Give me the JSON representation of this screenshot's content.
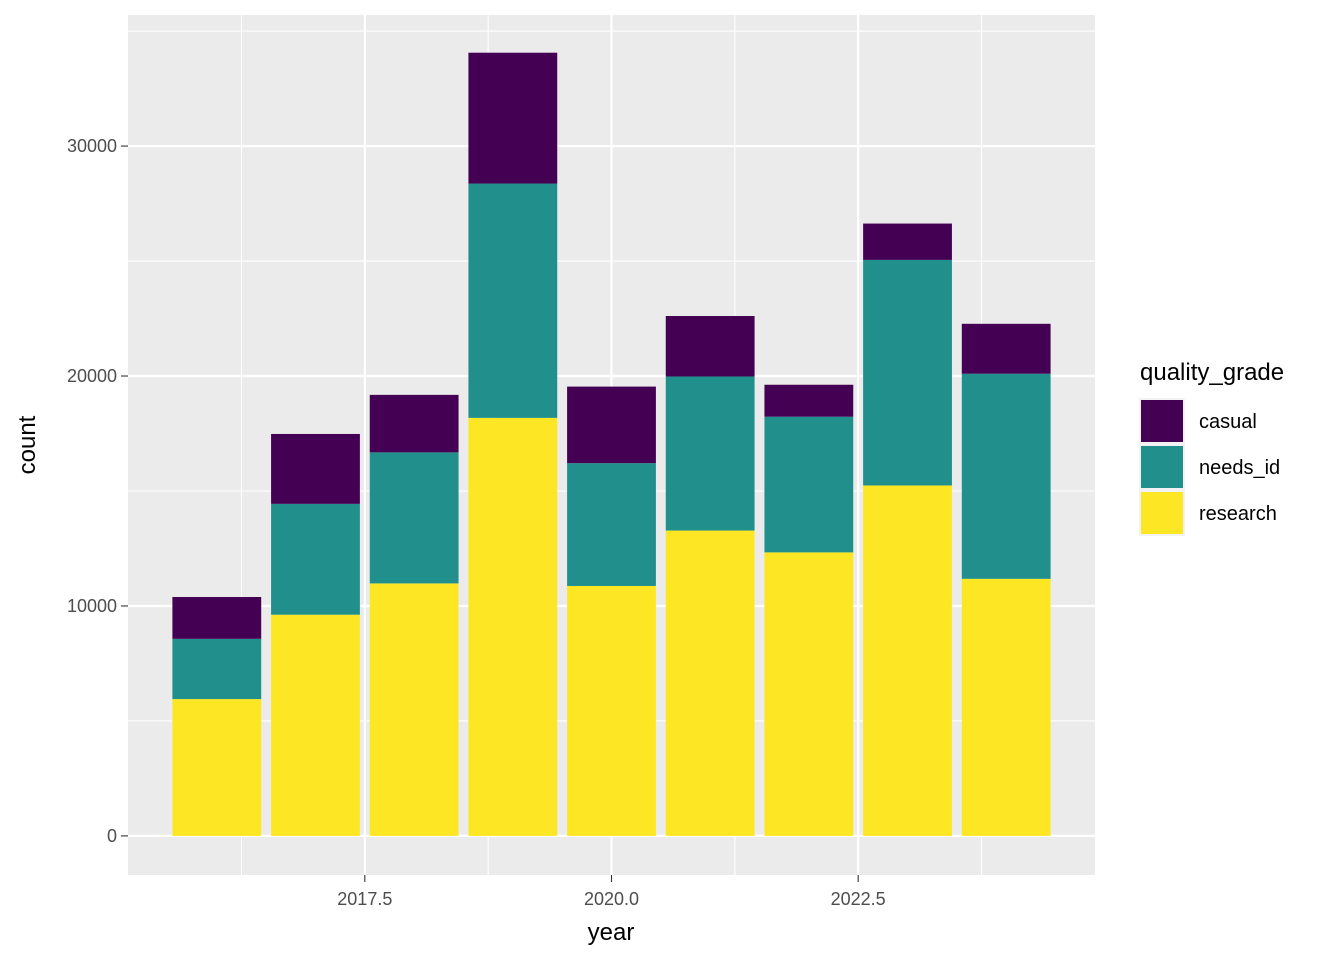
{
  "chart_data": {
    "type": "bar",
    "stacked": true,
    "x": [
      2016,
      2017,
      2018,
      2019,
      2020,
      2021,
      2022,
      2023,
      2024
    ],
    "series": [
      {
        "name": "research",
        "color": "#FDE725",
        "values": [
          5950,
          9620,
          10980,
          18180,
          10870,
          13280,
          12330,
          15240,
          11180
        ]
      },
      {
        "name": "needs_id",
        "color": "#21908C",
        "values": [
          2620,
          4820,
          5700,
          10190,
          5340,
          6700,
          5900,
          9810,
          8920
        ]
      },
      {
        "name": "casual",
        "color": "#440154",
        "values": [
          1820,
          3040,
          2500,
          5690,
          3330,
          2630,
          1390,
          1580,
          2170
        ]
      }
    ],
    "xlabel": "year",
    "ylabel": "count",
    "x_ticks": [
      "2017.5",
      "2020.0",
      "2022.5"
    ],
    "x_tick_values": [
      2017.5,
      2020.0,
      2022.5
    ],
    "y_ticks": [
      "0",
      "10000",
      "20000",
      "30000"
    ],
    "y_tick_values": [
      0,
      10000,
      20000,
      30000
    ],
    "xlim": [
      2015.1,
      2024.9
    ],
    "ylim": [
      -1700,
      35700
    ],
    "grid": true,
    "panel_background": "#EBEBEB",
    "legend": {
      "title": "quality_grade",
      "position": "right",
      "entries": [
        "casual",
        "needs_id",
        "research"
      ]
    }
  }
}
